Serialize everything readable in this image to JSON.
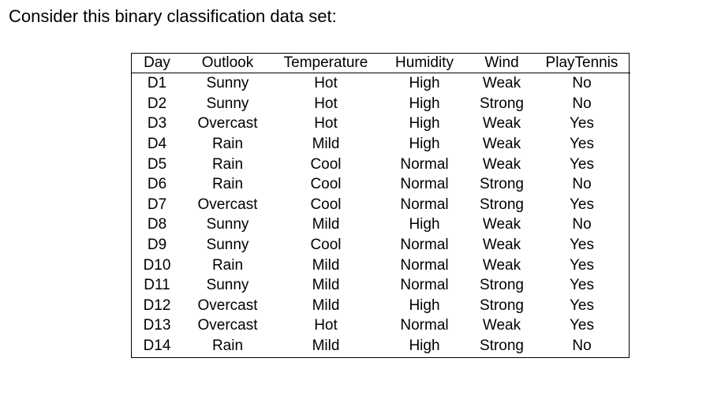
{
  "intro_text": "Consider this binary classification data set:",
  "table": {
    "headers": [
      "Day",
      "Outlook",
      "Temperature",
      "Humidity",
      "Wind",
      "PlayTennis"
    ],
    "rows": [
      [
        "D1",
        "Sunny",
        "Hot",
        "High",
        "Weak",
        "No"
      ],
      [
        "D2",
        "Sunny",
        "Hot",
        "High",
        "Strong",
        "No"
      ],
      [
        "D3",
        "Overcast",
        "Hot",
        "High",
        "Weak",
        "Yes"
      ],
      [
        "D4",
        "Rain",
        "Mild",
        "High",
        "Weak",
        "Yes"
      ],
      [
        "D5",
        "Rain",
        "Cool",
        "Normal",
        "Weak",
        "Yes"
      ],
      [
        "D6",
        "Rain",
        "Cool",
        "Normal",
        "Strong",
        "No"
      ],
      [
        "D7",
        "Overcast",
        "Cool",
        "Normal",
        "Strong",
        "Yes"
      ],
      [
        "D8",
        "Sunny",
        "Mild",
        "High",
        "Weak",
        "No"
      ],
      [
        "D9",
        "Sunny",
        "Cool",
        "Normal",
        "Weak",
        "Yes"
      ],
      [
        "D10",
        "Rain",
        "Mild",
        "Normal",
        "Weak",
        "Yes"
      ],
      [
        "D11",
        "Sunny",
        "Mild",
        "Normal",
        "Strong",
        "Yes"
      ],
      [
        "D12",
        "Overcast",
        "Mild",
        "High",
        "Strong",
        "Yes"
      ],
      [
        "D13",
        "Overcast",
        "Hot",
        "Normal",
        "Weak",
        "Yes"
      ],
      [
        "D14",
        "Rain",
        "Mild",
        "High",
        "Strong",
        "No"
      ]
    ]
  }
}
